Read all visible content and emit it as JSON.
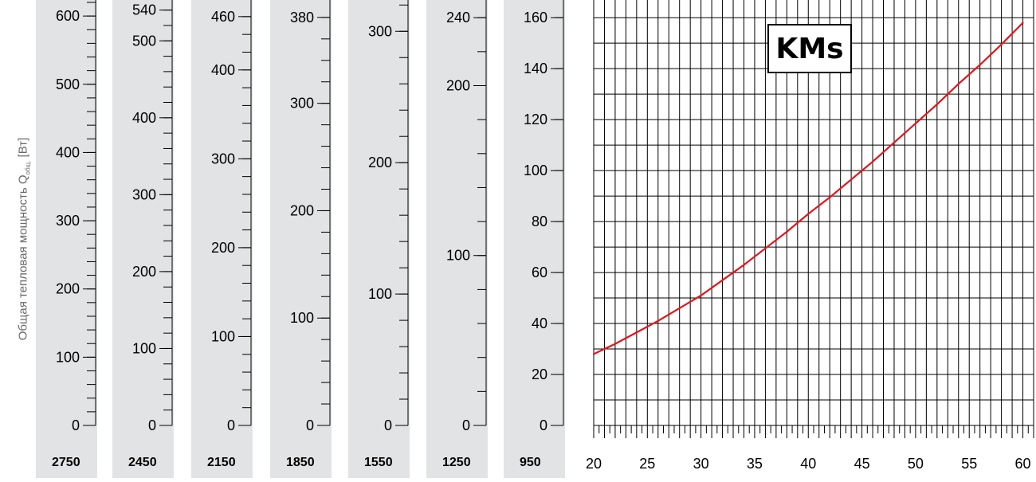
{
  "ylabel_main": "Общая тепловая мощность Q",
  "ylabel_sub": "общ.",
  "ylabel_unit": "[Вт]",
  "colors": {
    "curve": "#e3141b",
    "panel": "#e2e3e5",
    "grid": "#000000"
  },
  "chart_data": {
    "type": "line",
    "title": "KMs",
    "x_ticks": [
      20,
      25,
      30,
      35,
      40,
      45,
      50,
      55,
      60
    ],
    "xlim": [
      20,
      61
    ],
    "y_ticks": [
      0,
      20,
      40,
      60,
      80,
      100,
      120,
      140,
      160
    ],
    "ylim": [
      0,
      166
    ],
    "grid": true,
    "series": [
      {
        "x": [
          20,
          22,
          24,
          26,
          28,
          30,
          32,
          34,
          36,
          38,
          40,
          42,
          44,
          46,
          48,
          50,
          52,
          54,
          56,
          58,
          60
        ],
        "y": [
          28,
          32,
          36.5,
          41,
          46,
          51,
          57,
          63,
          69.5,
          76,
          83,
          89.5,
          96.5,
          103.5,
          111,
          118.5,
          126,
          134,
          141.5,
          149.5,
          158
        ]
      }
    ],
    "secondary_scales": [
      {
        "label": "2750",
        "ticks": [
          0,
          100,
          200,
          300,
          400,
          500,
          600
        ],
        "max": 620
      },
      {
        "label": "2450",
        "ticks": [
          0,
          100,
          200,
          300,
          400,
          500,
          540
        ],
        "max": 550
      },
      {
        "label": "2150",
        "ticks": [
          0,
          100,
          200,
          300,
          400,
          460
        ],
        "max": 476
      },
      {
        "label": "1850",
        "ticks": [
          0,
          100,
          200,
          300,
          380
        ],
        "max": 394
      },
      {
        "label": "1550",
        "ticks": [
          0,
          100,
          200,
          300
        ],
        "max": 322
      },
      {
        "label": "1250",
        "ticks": [
          0,
          100,
          200,
          240
        ],
        "max": 249
      },
      {
        "label": "950",
        "ticks": [
          0,
          20,
          40,
          60,
          80,
          100,
          120,
          140,
          160
        ],
        "max": 166
      }
    ]
  }
}
